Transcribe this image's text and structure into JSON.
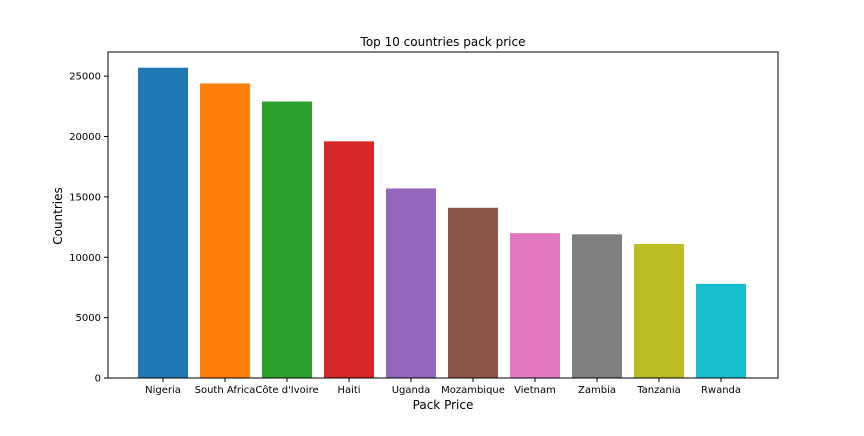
{
  "chart_data": {
    "type": "bar",
    "title": "Top 10 countries pack price",
    "xlabel": "Pack Price",
    "ylabel": "Countries",
    "categories": [
      "Nigeria",
      "South Africa",
      "Côte d'Ivoire",
      "Haiti",
      "Uganda",
      "Mozambique",
      "Vietnam",
      "Zambia",
      "Tanzania",
      "Rwanda"
    ],
    "values": [
      25700,
      24400,
      22900,
      19600,
      15700,
      14100,
      12000,
      11900,
      11100,
      7800
    ],
    "colors": [
      "#1f77b4",
      "#ff7f0e",
      "#2ca02c",
      "#d62728",
      "#9467bd",
      "#8c564b",
      "#e377c2",
      "#7f7f7f",
      "#bcbd22",
      "#17becf"
    ],
    "yticks": [
      0,
      5000,
      10000,
      15000,
      20000,
      25000
    ],
    "ylim": [
      0,
      27000
    ],
    "grid": false,
    "legend": false
  }
}
